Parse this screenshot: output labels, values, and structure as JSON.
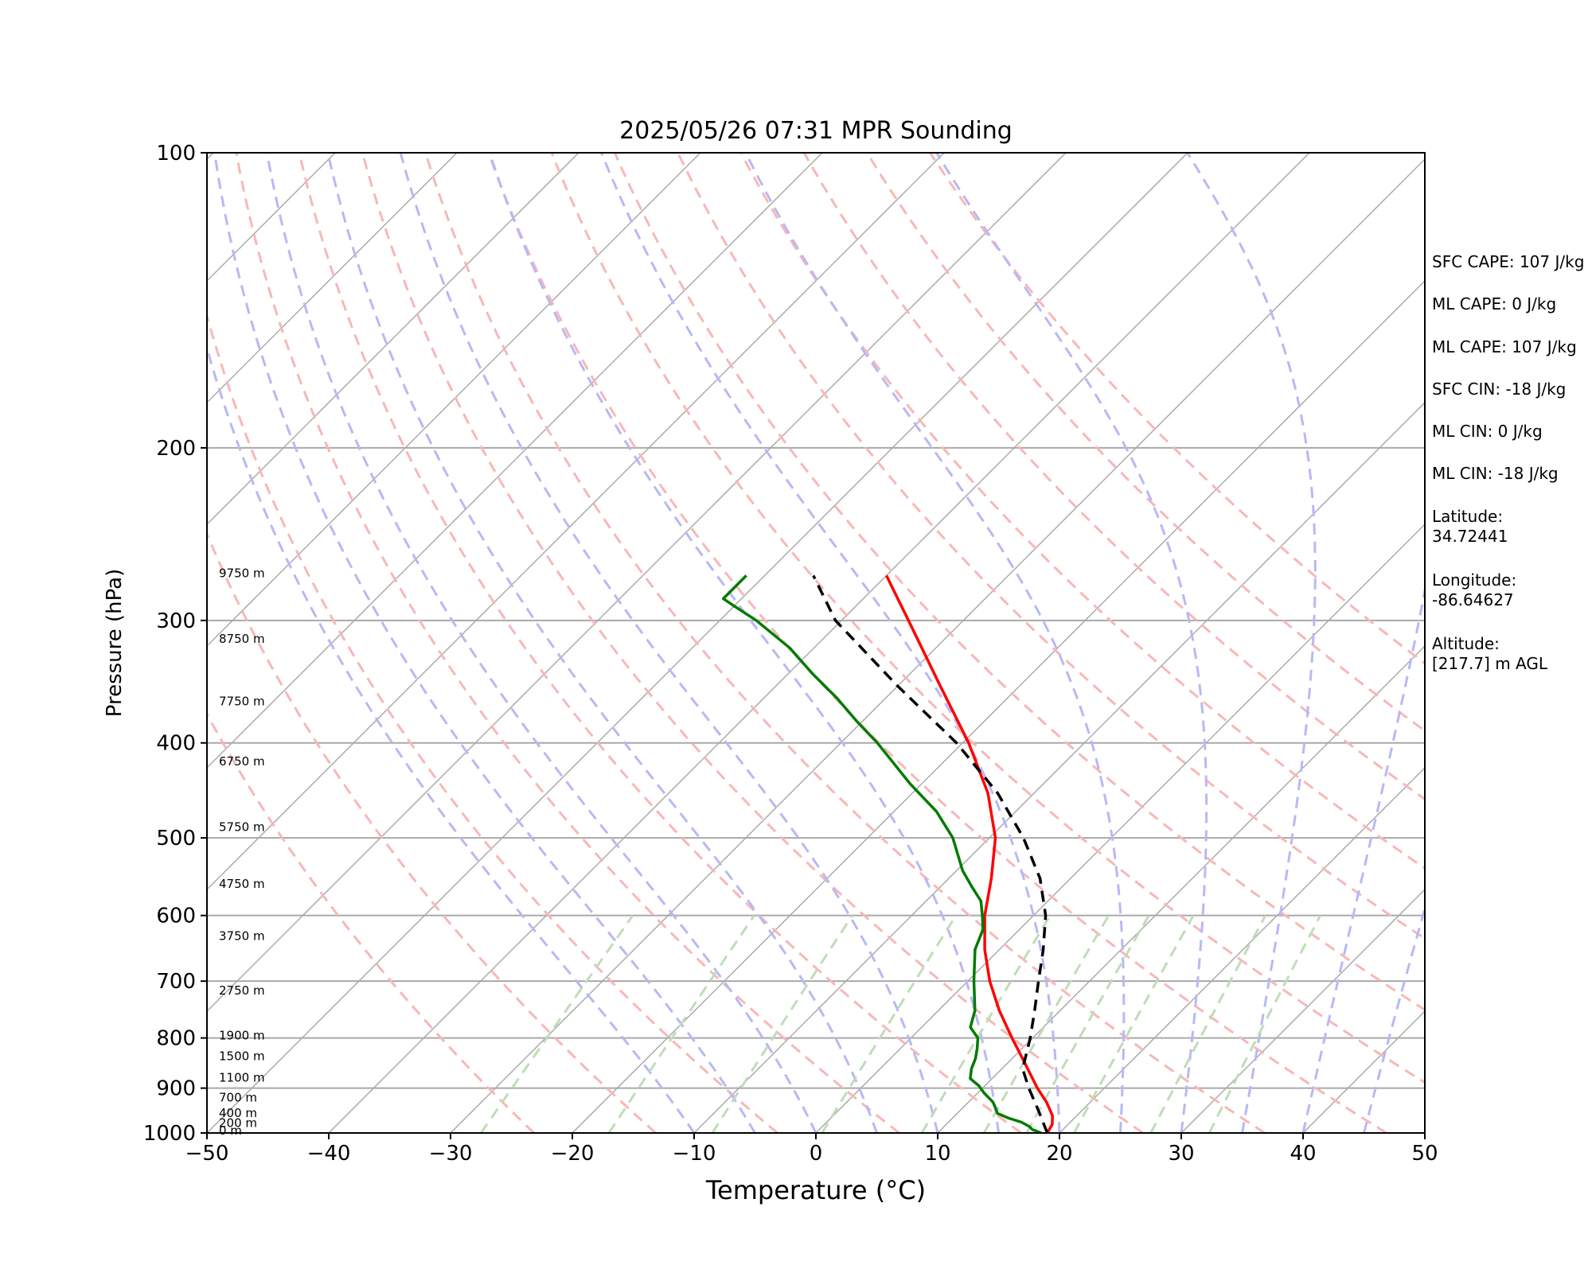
{
  "chart_data": {
    "type": "line",
    "subtype": "skew-T log-P sounding",
    "title": "2025/05/26 07:31 MPR Sounding",
    "xlabel": "Temperature (°C)",
    "ylabel": "Pressure (hPa)",
    "xlim": [
      -50,
      50
    ],
    "ylim": [
      1000,
      100
    ],
    "y_scale": "log",
    "grid": true,
    "x_ticks": [
      "−50",
      "−40",
      "−30",
      "−20",
      "−10",
      "0",
      "10",
      "20",
      "30",
      "40",
      "50"
    ],
    "y_ticks": [
      {
        "p": 100,
        "label": "100"
      },
      {
        "p": 200,
        "label": "200"
      },
      {
        "p": 300,
        "label": "300"
      },
      {
        "p": 400,
        "label": "400"
      },
      {
        "p": 500,
        "label": "500"
      },
      {
        "p": 600,
        "label": "600"
      },
      {
        "p": 700,
        "label": "700"
      },
      {
        "p": 800,
        "label": "800"
      },
      {
        "p": 900,
        "label": "900"
      },
      {
        "p": 1000,
        "label": "1000"
      }
    ],
    "height_labels": [
      {
        "p": 1000,
        "label": "0 m"
      },
      {
        "p": 982,
        "label": "200 m"
      },
      {
        "p": 960,
        "label": "400 m"
      },
      {
        "p": 925,
        "label": "700 m"
      },
      {
        "p": 883,
        "label": "1100 m"
      },
      {
        "p": 840,
        "label": "1500 m"
      },
      {
        "p": 800,
        "label": "1900 m"
      },
      {
        "p": 720,
        "label": "2750 m"
      },
      {
        "p": 633,
        "label": "3750 m"
      },
      {
        "p": 560,
        "label": "4750 m"
      },
      {
        "p": 490,
        "label": "5750 m"
      },
      {
        "p": 420,
        "label": "6750 m"
      },
      {
        "p": 365,
        "label": "7750 m"
      },
      {
        "p": 315,
        "label": "8750 m"
      },
      {
        "p": 270,
        "label": "9750 m"
      }
    ],
    "series": [
      {
        "role": "temperature",
        "color": "#ff0000",
        "style": "solid",
        "points": [
          {
            "p": 1000,
            "t": 19.0
          },
          {
            "p": 980,
            "t": 18.7
          },
          {
            "p": 960,
            "t": 18.0
          },
          {
            "p": 930,
            "t": 16.4
          },
          {
            "p": 900,
            "t": 14.5
          },
          {
            "p": 850,
            "t": 11.5
          },
          {
            "p": 800,
            "t": 8.3
          },
          {
            "p": 750,
            "t": 5.0
          },
          {
            "p": 700,
            "t": 1.8
          },
          {
            "p": 650,
            "t": -1.2
          },
          {
            "p": 600,
            "t": -4.0
          },
          {
            "p": 550,
            "t": -6.5
          },
          {
            "p": 500,
            "t": -9.5
          },
          {
            "p": 450,
            "t": -13.8
          },
          {
            "p": 400,
            "t": -19.5
          },
          {
            "p": 350,
            "t": -26.5
          },
          {
            "p": 300,
            "t": -34.5
          },
          {
            "p": 270,
            "t": -40.0
          }
        ]
      },
      {
        "role": "dewpoint",
        "color": "#007b00",
        "style": "solid",
        "points": [
          {
            "p": 1000,
            "t": 18.5
          },
          {
            "p": 992,
            "t": 17.5
          },
          {
            "p": 985,
            "t": 17.0
          },
          {
            "p": 975,
            "t": 16.0
          },
          {
            "p": 965,
            "t": 14.5
          },
          {
            "p": 955,
            "t": 13.3
          },
          {
            "p": 945,
            "t": 12.8
          },
          {
            "p": 930,
            "t": 12.0
          },
          {
            "p": 910,
            "t": 10.5
          },
          {
            "p": 895,
            "t": 9.5
          },
          {
            "p": 880,
            "t": 8.2
          },
          {
            "p": 860,
            "t": 7.5
          },
          {
            "p": 840,
            "t": 7.0
          },
          {
            "p": 820,
            "t": 6.3
          },
          {
            "p": 800,
            "t": 5.5
          },
          {
            "p": 780,
            "t": 4.0
          },
          {
            "p": 750,
            "t": 3.0
          },
          {
            "p": 700,
            "t": 0.5
          },
          {
            "p": 650,
            "t": -2.0
          },
          {
            "p": 620,
            "t": -3.0
          },
          {
            "p": 600,
            "t": -4.2
          },
          {
            "p": 580,
            "t": -5.5
          },
          {
            "p": 560,
            "t": -7.5
          },
          {
            "p": 540,
            "t": -9.5
          },
          {
            "p": 500,
            "t": -13.0
          },
          {
            "p": 470,
            "t": -16.5
          },
          {
            "p": 440,
            "t": -21.0
          },
          {
            "p": 400,
            "t": -27.0
          },
          {
            "p": 380,
            "t": -30.5
          },
          {
            "p": 360,
            "t": -34.0
          },
          {
            "p": 340,
            "t": -38.0
          },
          {
            "p": 320,
            "t": -42.0
          },
          {
            "p": 300,
            "t": -47.0
          },
          {
            "p": 290,
            "t": -50.0
          },
          {
            "p": 285,
            "t": -51.5
          },
          {
            "p": 270,
            "t": -51.5
          }
        ]
      },
      {
        "role": "parcel",
        "color": "#000000",
        "style": "dashed",
        "points": [
          {
            "p": 1000,
            "t": 19.0
          },
          {
            "p": 950,
            "t": 16.5
          },
          {
            "p": 900,
            "t": 13.8
          },
          {
            "p": 860,
            "t": 11.7
          },
          {
            "p": 800,
            "t": 9.8
          },
          {
            "p": 750,
            "t": 7.9
          },
          {
            "p": 700,
            "t": 5.8
          },
          {
            "p": 650,
            "t": 3.6
          },
          {
            "p": 600,
            "t": 1.0
          },
          {
            "p": 550,
            "t": -2.5
          },
          {
            "p": 500,
            "t": -7.2
          },
          {
            "p": 450,
            "t": -13.0
          },
          {
            "p": 400,
            "t": -20.5
          },
          {
            "p": 350,
            "t": -30.0
          },
          {
            "p": 300,
            "t": -40.5
          },
          {
            "p": 270,
            "t": -46.0
          }
        ]
      }
    ],
    "reference_lines": {
      "dry_adiabats_theta_K": [
        250,
        260,
        270,
        280,
        290,
        300,
        310,
        320,
        330,
        340,
        350,
        360,
        370,
        380,
        390
      ],
      "moist_adiabat_start_C": [
        -10,
        -5,
        0,
        5,
        10,
        15,
        20,
        25,
        30,
        35,
        40,
        45,
        50,
        55,
        60
      ],
      "mixing_ratio_lines_start_C": [
        -27.5,
        -17,
        -8.5,
        0.5,
        8.7,
        13.8,
        17.3,
        21.2,
        27.5,
        32.3
      ],
      "colors": {
        "isotherm": "#a9a9a9",
        "isobar": "#a9a9a9",
        "dry_adiabat": "#f8b7b7",
        "moist_adiabat": "#b8b8f6",
        "mixing_ratio": "#bfddb8"
      }
    }
  },
  "info_panel": {
    "sfc_cape": "SFC CAPE: 107 J/kg",
    "ml_cape_1": "ML CAPE: 0 J/kg",
    "ml_cape_2": "ML CAPE: 107 J/kg",
    "sfc_cin": "SFC CIN: -18 J/kg",
    "ml_cin_1": "ML CIN: 0 J/kg",
    "ml_cin_2": "ML CIN: -18 J/kg",
    "latitude": "Latitude:\n34.72441",
    "longitude": "Longitude:\n-86.64627",
    "altitude": "Altitude:\n[217.7] m AGL"
  }
}
